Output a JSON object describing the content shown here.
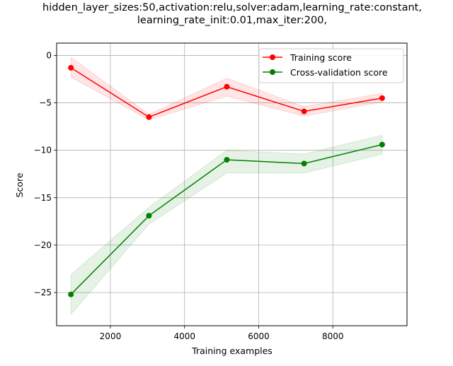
{
  "chart_data": {
    "type": "line",
    "title_lines": [
      "hidden_layer_sizes:50,activation:relu,solver:adam,learning_rate:constant,",
      "learning_rate_init:0.01,max_iter:200,"
    ],
    "xlabel": "Training examples",
    "ylabel": "Score",
    "xlim": [
      550,
      10000
    ],
    "ylim": [
      -28.5,
      1.3
    ],
    "x_ticks": [
      2000,
      4000,
      6000,
      8000
    ],
    "x_tick_labels": [
      "2000",
      "4000",
      "6000",
      "8000"
    ],
    "y_ticks": [
      0,
      -5,
      -10,
      -15,
      -20,
      -25
    ],
    "y_tick_labels": [
      "0",
      "−5",
      "−10",
      "−15",
      "−20",
      "−25"
    ],
    "grid": true,
    "legend_position": "upper right",
    "x": [
      935,
      3040,
      5140,
      7225,
      9330
    ],
    "series": [
      {
        "name": "Training score",
        "color": "#ff0000",
        "marker": "circle",
        "values": [
          -1.3,
          -6.5,
          -3.3,
          -5.9,
          -4.5
        ],
        "band_low": [
          -2.3,
          -6.8,
          -4.3,
          -6.4,
          -4.9
        ],
        "band_high": [
          -0.2,
          -6.2,
          -2.4,
          -5.4,
          -4.0
        ]
      },
      {
        "name": "Cross-validation score",
        "color": "#008000",
        "marker": "circle",
        "values": [
          -25.2,
          -16.9,
          -11.0,
          -11.4,
          -9.4
        ],
        "band_low": [
          -27.3,
          -17.8,
          -12.4,
          -12.4,
          -10.4
        ],
        "band_high": [
          -23.1,
          -16.0,
          -10.0,
          -10.4,
          -8.4
        ]
      }
    ]
  }
}
